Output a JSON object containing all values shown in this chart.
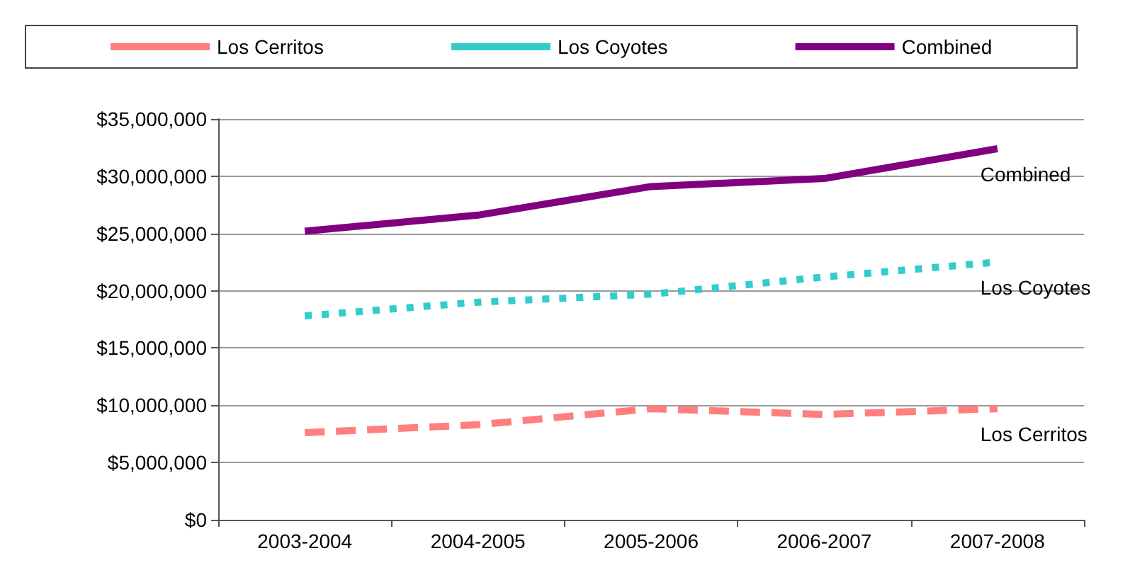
{
  "chart_data": {
    "type": "line",
    "categories": [
      "2003-2004",
      "2004-2005",
      "2005-2006",
      "2006-2007",
      "2007-2008"
    ],
    "series": [
      {
        "name": "Los Cerritos",
        "color": "#ff7f7f",
        "line_style": "dashed",
        "values": [
          7600000,
          8300000,
          9700000,
          9200000,
          9700000
        ]
      },
      {
        "name": "Los Coyotes",
        "color": "#33cccc",
        "line_style": "dotted",
        "values": [
          17800000,
          19000000,
          19700000,
          21200000,
          22500000
        ]
      },
      {
        "name": "Combined",
        "color": "#800080",
        "line_style": "solid",
        "values": [
          25200000,
          26600000,
          29100000,
          29800000,
          32400000
        ]
      }
    ],
    "ylim": [
      0,
      35000000
    ],
    "yticks": [
      {
        "value": 0,
        "label": "$0"
      },
      {
        "value": 5000000,
        "label": "$5,000,000"
      },
      {
        "value": 10000000,
        "label": "$10,000,000"
      },
      {
        "value": 15000000,
        "label": "$15,000,000"
      },
      {
        "value": 20000000,
        "label": "$20,000,000"
      },
      {
        "value": 25000000,
        "label": "$25,000,000"
      },
      {
        "value": 30000000,
        "label": "$30,000,000"
      },
      {
        "value": 35000000,
        "label": "$35,000,000"
      }
    ],
    "grid": "y",
    "legend": "top",
    "marker": "none"
  }
}
